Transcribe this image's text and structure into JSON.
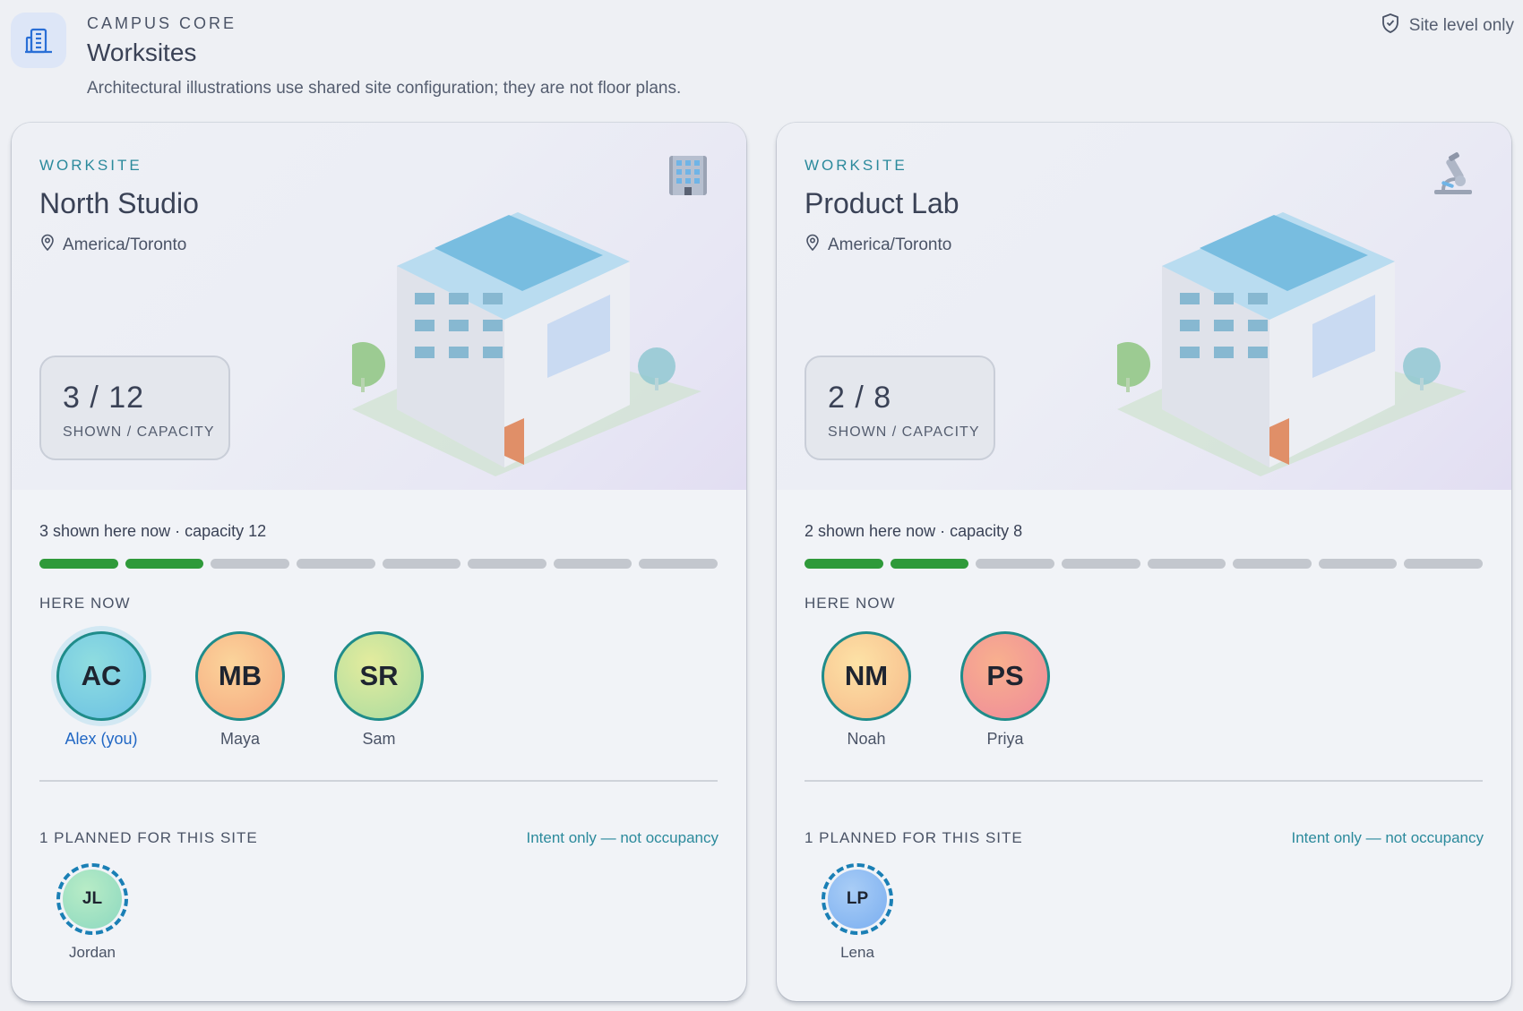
{
  "header": {
    "eyebrow": "CAMPUS CORE",
    "title": "Worksites",
    "subtitle": "Architectural illustrations use shared site configuration; they are not floor plans.",
    "scope_label": "Site level only",
    "icon": "building-icon",
    "scope_icon": "shield-check-icon"
  },
  "colors": {
    "accent": "#2b8a9c",
    "filled_slot": "#2f9a3a",
    "empty_slot": "#c3c7ce",
    "you_link": "#2167c4"
  },
  "cards": [
    {
      "eyebrow": "WORKSITE",
      "name": "North Studio",
      "timezone": "America/Toronto",
      "corner_icon": "office-building-icon",
      "capacity_value": "3 / 12",
      "capacity_label": "SHOWN / CAPACITY",
      "summary": "3 shown here now · capacity 12",
      "segments_total": 8,
      "segments_filled": 2,
      "here_now_label": "HERE NOW",
      "people": [
        {
          "initials": "AC",
          "name": "Alex (you)",
          "is_you": true
        },
        {
          "initials": "MB",
          "name": "Maya",
          "is_you": false
        },
        {
          "initials": "SR",
          "name": "Sam",
          "is_you": false
        }
      ],
      "planned_label": "1 PLANNED FOR THIS SITE",
      "planned_note": "Intent only — not occupancy",
      "planned": [
        {
          "initials": "JL",
          "name": "Jordan"
        }
      ]
    },
    {
      "eyebrow": "WORKSITE",
      "name": "Product Lab",
      "timezone": "America/Toronto",
      "corner_icon": "microscope-icon",
      "capacity_value": "2 / 8",
      "capacity_label": "SHOWN / CAPACITY",
      "summary": "2 shown here now · capacity 8",
      "segments_total": 8,
      "segments_filled": 2,
      "here_now_label": "HERE NOW",
      "people": [
        {
          "initials": "NM",
          "name": "Noah",
          "is_you": false
        },
        {
          "initials": "PS",
          "name": "Priya",
          "is_you": false
        }
      ],
      "planned_label": "1 PLANNED FOR THIS SITE",
      "planned_note": "Intent only — not occupancy",
      "planned": [
        {
          "initials": "LP",
          "name": "Lena"
        }
      ]
    }
  ]
}
